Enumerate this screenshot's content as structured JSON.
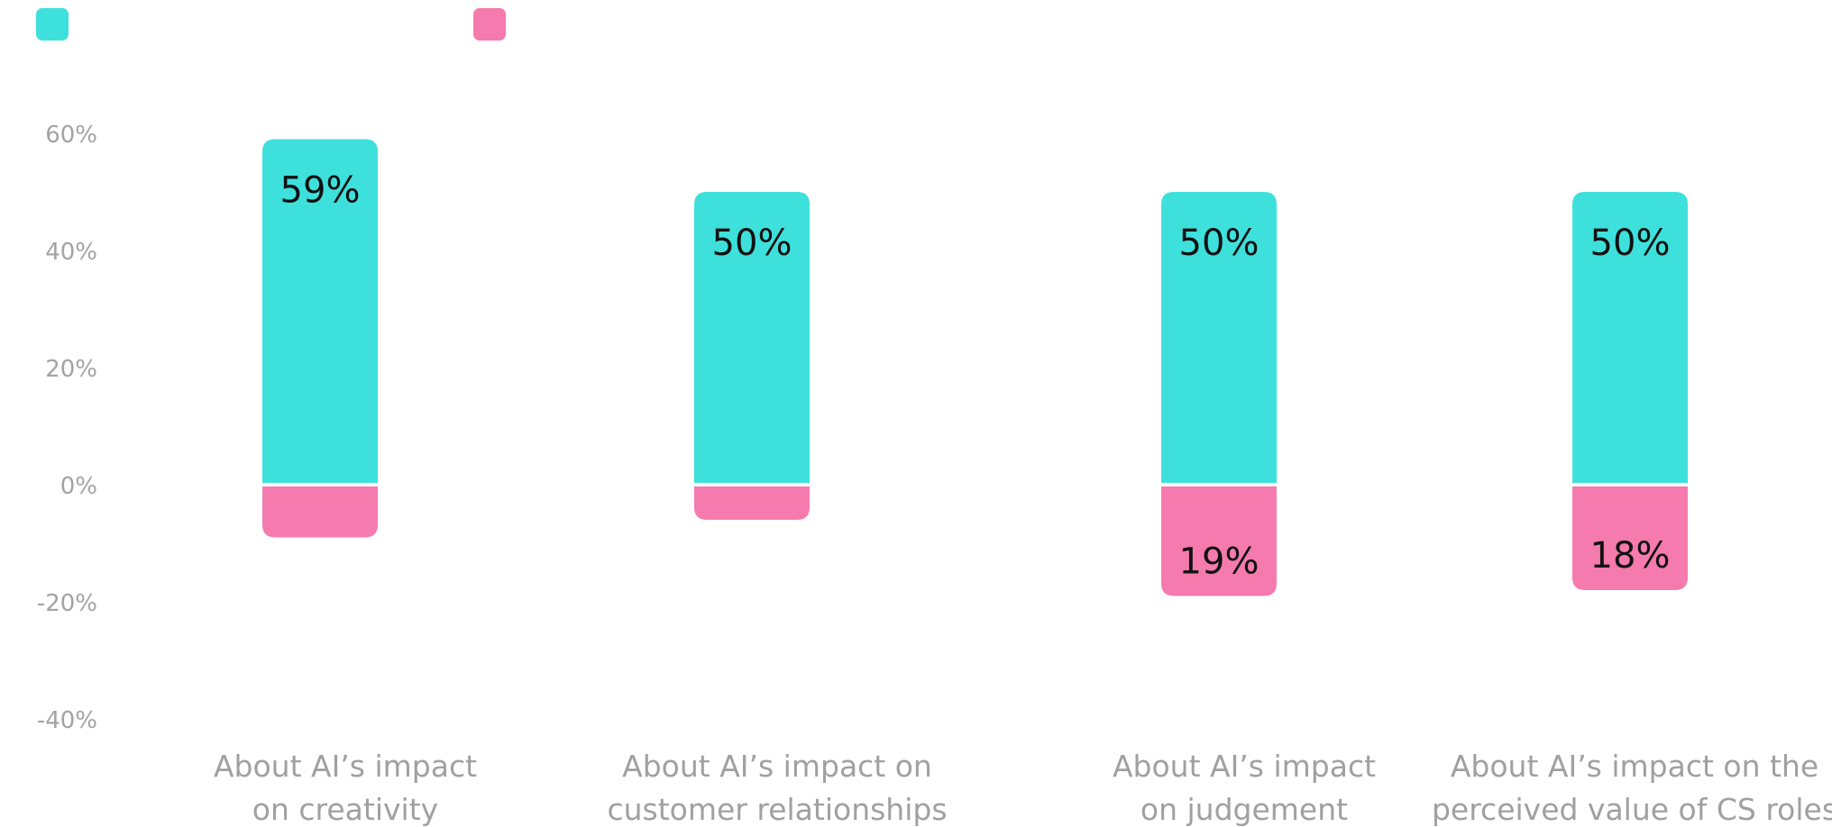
{
  "chart_data": {
    "type": "bar",
    "stacked": "diverging",
    "categories": [
      [
        "About AI’s impact",
        "on creativity"
      ],
      [
        "About AI’s impact on",
        "customer relationships"
      ],
      [
        "About AI’s impact",
        "on judgement"
      ],
      [
        "About AI’s impact on the",
        "perceived value of CS roles"
      ]
    ],
    "series": [
      {
        "color": "#3ee0dc",
        "values": [
          59,
          50,
          50,
          50
        ],
        "labels": [
          "59%",
          "50%",
          "50%",
          "50%"
        ]
      },
      {
        "color": "#f57aad",
        "values": [
          -9,
          -6,
          -19,
          -18
        ],
        "labels": [
          "",
          "",
          "19%",
          "18%"
        ]
      }
    ],
    "yticks": [
      60,
      40,
      20,
      0,
      -20,
      -40
    ],
    "ytick_labels": [
      "60%",
      "40%",
      "20%",
      "0%",
      "-20%",
      "-40%"
    ],
    "ylim": [
      -40,
      60
    ],
    "legend_position": "top-left",
    "grid": false
  }
}
